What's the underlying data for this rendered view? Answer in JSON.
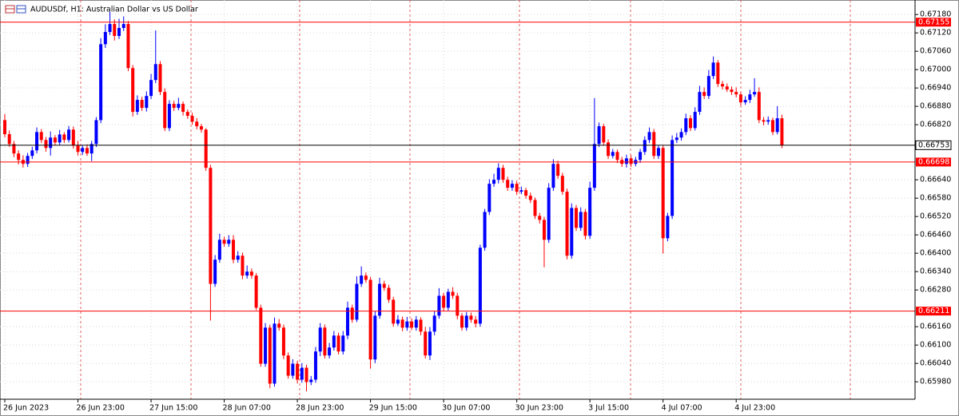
{
  "chart_data": {
    "type": "candlestick",
    "title": "AUDUSDf, H1:  Australian Dollar vs US Dollar",
    "categories": [
      "26 Jun 2023",
      null,
      null,
      null,
      null,
      null,
      null,
      null,
      null,
      null,
      null,
      null,
      null,
      null,
      null,
      null,
      "26 Jun 23:00",
      null,
      null,
      null,
      null,
      null,
      null,
      null,
      null,
      null,
      null,
      null,
      null,
      null,
      null,
      null,
      "27 Jun 15:00",
      null,
      null,
      null,
      null,
      null,
      null,
      null,
      null,
      null,
      null,
      null,
      null,
      null,
      null,
      null,
      "28 Jun 07:00",
      null,
      null,
      null,
      null,
      null,
      null,
      null,
      null,
      null,
      null,
      null,
      null,
      null,
      null,
      null,
      "28 Jun 23:00",
      null,
      null,
      null,
      null,
      null,
      null,
      null,
      null,
      null,
      null,
      null,
      null,
      null,
      null,
      null,
      "29 Jun 15:00",
      null,
      null,
      null,
      null,
      null,
      null,
      null,
      null,
      null,
      null,
      null,
      null,
      null,
      null,
      null,
      "30 Jun 07:00",
      null,
      null,
      null,
      null,
      null,
      null,
      null,
      null,
      null,
      null,
      null,
      null,
      null,
      null,
      null,
      "30 Jun 23:00",
      null,
      null,
      null,
      null,
      null,
      null,
      null,
      null,
      null,
      null,
      null,
      null,
      null,
      null,
      null,
      "3 Jul 15:00",
      null,
      null,
      null,
      null,
      null,
      null,
      null,
      null,
      null,
      null,
      null,
      null,
      null,
      null,
      null,
      "4 Jul 07:00",
      null,
      null,
      null,
      null,
      null,
      null,
      null,
      null,
      null,
      null,
      null,
      null,
      null,
      null,
      null,
      "4 Jul 23:00",
      null,
      null,
      null,
      null,
      null,
      null,
      null,
      null,
      null,
      null
    ],
    "open": [
      0.66835,
      0.66789,
      0.66757,
      0.66726,
      0.66705,
      0.66692,
      0.66718,
      0.66736,
      0.66796,
      0.6677,
      0.66744,
      0.66778,
      0.66762,
      0.66788,
      0.6677,
      0.66804,
      0.66752,
      0.66731,
      0.66744,
      0.66726,
      0.66757,
      0.66835,
      0.67083,
      0.67123,
      0.67149,
      0.6711,
      0.67136,
      0.67149,
      0.67005,
      0.66862,
      0.66901,
      0.66875,
      0.66914,
      0.66966,
      0.67018,
      0.66927,
      0.66809,
      0.66888,
      0.66875,
      0.66888,
      0.66862,
      0.66849,
      0.6683,
      0.66815,
      0.66804,
      0.66679,
      0.663,
      0.66379,
      0.66444,
      0.66431,
      0.66444,
      0.66379,
      0.66392,
      0.66327,
      0.6634,
      0.66327,
      0.66222,
      0.66039,
      0.66157,
      0.65974,
      0.6617,
      0.66157,
      0.66066,
      0.66,
      0.66039,
      0.65987,
      0.66026,
      0.65979,
      0.65987,
      0.66079,
      0.66157,
      0.66066,
      0.66092,
      0.66131,
      0.66079,
      0.66131,
      0.66222,
      0.66183,
      0.663,
      0.66327,
      0.66313,
      0.66053,
      0.66196,
      0.663,
      0.66287,
      0.66248,
      0.6617,
      0.66183,
      0.66157,
      0.66177,
      0.66157,
      0.66183,
      0.66144,
      0.66066,
      0.66144,
      0.66196,
      0.66261,
      0.66222,
      0.66274,
      0.66261,
      0.66196,
      0.66157,
      0.66196,
      0.66183,
      0.6617,
      0.66418,
      0.66535,
      0.66627,
      0.6664,
      0.66679,
      0.6664,
      0.66614,
      0.66627,
      0.66601,
      0.66606,
      0.66588,
      0.66574,
      0.66522,
      0.66509,
      0.66444,
      0.66614,
      0.66692,
      0.66653,
      0.66601,
      0.66392,
      0.66548,
      0.66483,
      0.66535,
      0.66457,
      0.66614,
      0.66757,
      0.66815,
      0.66762,
      0.66718,
      0.66731,
      0.66705,
      0.66692,
      0.6671,
      0.66692,
      0.66705,
      0.66731,
      0.6677,
      0.66796,
      0.66718,
      0.66744,
      0.66449,
      0.66522,
      0.6677,
      0.66778,
      0.66796,
      0.66841,
      0.66809,
      0.66862,
      0.66927,
      0.66914,
      0.66979,
      0.67023,
      0.66953,
      0.66945,
      0.66935,
      0.66927,
      0.66919,
      0.66893,
      0.66901,
      0.66919,
      0.66927,
      0.66835,
      0.6683,
      0.66835,
      0.66796,
      0.66841
    ],
    "high": [
      0.66855,
      0.66801,
      0.66767,
      0.66736,
      0.6672,
      0.66728,
      0.66748,
      0.66811,
      0.66806,
      0.6678,
      0.66798,
      0.66786,
      0.66803,
      0.66796,
      0.66816,
      0.66814,
      0.66767,
      0.66754,
      0.66756,
      0.66767,
      0.66845,
      0.67103,
      0.67148,
      0.67189,
      0.67164,
      0.67166,
      0.67174,
      0.67159,
      0.67015,
      0.66916,
      0.66911,
      0.66929,
      0.66986,
      0.67128,
      0.67028,
      0.66939,
      0.669,
      0.66898,
      0.66908,
      0.66896,
      0.6687,
      0.66859,
      0.66842,
      0.66823,
      0.66809,
      0.66689,
      0.66394,
      0.66464,
      0.66454,
      0.66459,
      0.66459,
      0.66407,
      0.66402,
      0.6636,
      0.6635,
      0.66335,
      0.66232,
      0.66172,
      0.66167,
      0.6619,
      0.66185,
      0.66167,
      0.66076,
      0.66054,
      0.66049,
      0.66041,
      0.66036,
      0.65999,
      0.66094,
      0.66172,
      0.66167,
      0.66107,
      0.66146,
      0.66141,
      0.66146,
      0.66242,
      0.66232,
      0.66325,
      0.66357,
      0.66337,
      0.66323,
      0.66211,
      0.6632,
      0.6631,
      0.66297,
      0.66258,
      0.66198,
      0.66193,
      0.66192,
      0.66187,
      0.66195,
      0.66191,
      0.66159,
      0.66159,
      0.66211,
      0.66286,
      0.66271,
      0.66284,
      0.66289,
      0.66271,
      0.66204,
      0.66208,
      0.66206,
      0.66195,
      0.66428,
      0.66545,
      0.66642,
      0.6666,
      0.66694,
      0.66689,
      0.6665,
      0.66639,
      0.66637,
      0.66618,
      0.66614,
      0.66598,
      0.66582,
      0.66532,
      0.66519,
      0.66629,
      0.66707,
      0.66702,
      0.66663,
      0.66611,
      0.66563,
      0.66558,
      0.6655,
      0.66545,
      0.66634,
      0.66907,
      0.66827,
      0.66823,
      0.66772,
      0.66741,
      0.66739,
      0.66715,
      0.66722,
      0.6672,
      0.66715,
      0.66741,
      0.66782,
      0.66811,
      0.66806,
      0.66754,
      0.66754,
      0.66532,
      0.66785,
      0.66793,
      0.66808,
      0.66856,
      0.66851,
      0.66877,
      0.66947,
      0.66942,
      0.66999,
      0.67043,
      0.67031,
      0.66963,
      0.66955,
      0.66945,
      0.66942,
      0.66927,
      0.66913,
      0.66934,
      0.66972,
      0.66942,
      0.66845,
      0.66847,
      0.66843,
      0.66881,
      0.66853
    ],
    "low": [
      0.66779,
      0.66747,
      0.66714,
      0.6669,
      0.6668,
      0.66682,
      0.66708,
      0.66726,
      0.6676,
      0.66732,
      0.66719,
      0.66752,
      0.66754,
      0.6676,
      0.66762,
      0.66742,
      0.66719,
      0.66721,
      0.66718,
      0.66701,
      0.66747,
      0.66825,
      0.67071,
      0.67113,
      0.67095,
      0.671,
      0.67126,
      0.66995,
      0.66847,
      0.66852,
      0.66865,
      0.66863,
      0.66904,
      0.66956,
      0.66917,
      0.66799,
      0.66799,
      0.66865,
      0.66867,
      0.6685,
      0.66839,
      0.6682,
      0.66805,
      0.66794,
      0.66669,
      0.6618,
      0.6629,
      0.66369,
      0.66421,
      0.66421,
      0.66367,
      0.66369,
      0.66315,
      0.66317,
      0.66317,
      0.66214,
      0.66029,
      0.66029,
      0.65959,
      0.65964,
      0.66147,
      0.66054,
      0.6599,
      0.6599,
      0.65975,
      0.65977,
      0.65949,
      0.65969,
      0.65977,
      0.66064,
      0.66056,
      0.66056,
      0.66082,
      0.66069,
      0.66069,
      0.66119,
      0.66173,
      0.66175,
      0.6629,
      0.66303,
      0.66023,
      0.66041,
      0.66186,
      0.66277,
      0.66238,
      0.6616,
      0.66162,
      0.66145,
      0.66147,
      0.66149,
      0.66147,
      0.66132,
      0.66056,
      0.66051,
      0.66132,
      0.66186,
      0.6621,
      0.66212,
      0.66251,
      0.66184,
      0.66147,
      0.66147,
      0.66173,
      0.66158,
      0.6616,
      0.66408,
      0.66525,
      0.66617,
      0.66628,
      0.6663,
      0.66604,
      0.66604,
      0.66591,
      0.66593,
      0.66578,
      0.66564,
      0.66512,
      0.66497,
      0.66354,
      0.66434,
      0.66604,
      0.66643,
      0.66591,
      0.6638,
      0.66382,
      0.66473,
      0.66473,
      0.66445,
      0.66447,
      0.66604,
      0.66747,
      0.66752,
      0.66708,
      0.6671,
      0.66695,
      0.66682,
      0.6668,
      0.66682,
      0.66684,
      0.66695,
      0.66721,
      0.6676,
      0.66708,
      0.66708,
      0.66399,
      0.66439,
      0.66512,
      0.6676,
      0.66768,
      0.66786,
      0.66799,
      0.66801,
      0.66852,
      0.66904,
      0.66904,
      0.66969,
      0.66943,
      0.66935,
      0.66927,
      0.66917,
      0.66909,
      0.66883,
      0.66885,
      0.66891,
      0.66911,
      0.66825,
      0.66818,
      0.6682,
      0.66786,
      0.66788,
      0.66743
    ],
    "close": [
      0.66789,
      0.66757,
      0.66726,
      0.66705,
      0.66692,
      0.66718,
      0.66736,
      0.66796,
      0.6677,
      0.66744,
      0.66778,
      0.66762,
      0.66788,
      0.6677,
      0.66804,
      0.66752,
      0.66731,
      0.66744,
      0.66726,
      0.66757,
      0.66835,
      0.67083,
      0.67123,
      0.67149,
      0.6711,
      0.67136,
      0.67149,
      0.67005,
      0.66862,
      0.66901,
      0.66875,
      0.66914,
      0.66966,
      0.67018,
      0.66927,
      0.66809,
      0.66888,
      0.66875,
      0.66888,
      0.66862,
      0.66849,
      0.6683,
      0.66815,
      0.66804,
      0.66679,
      0.663,
      0.66379,
      0.66444,
      0.66431,
      0.66444,
      0.66379,
      0.66392,
      0.66327,
      0.6634,
      0.66327,
      0.66222,
      0.66039,
      0.66157,
      0.65974,
      0.6617,
      0.66157,
      0.66066,
      0.66,
      0.66039,
      0.65987,
      0.66026,
      0.65979,
      0.65987,
      0.66079,
      0.66157,
      0.66066,
      0.66092,
      0.66131,
      0.66079,
      0.66131,
      0.66222,
      0.66183,
      0.663,
      0.66327,
      0.66313,
      0.66053,
      0.66196,
      0.663,
      0.66287,
      0.66248,
      0.6617,
      0.66183,
      0.66157,
      0.66177,
      0.66157,
      0.66183,
      0.66144,
      0.66066,
      0.66144,
      0.66196,
      0.66261,
      0.66222,
      0.66274,
      0.66261,
      0.66196,
      0.66157,
      0.66196,
      0.66183,
      0.6617,
      0.66418,
      0.66535,
      0.66627,
      0.6664,
      0.66679,
      0.6664,
      0.66614,
      0.66627,
      0.66601,
      0.66606,
      0.66588,
      0.66574,
      0.66522,
      0.66509,
      0.66444,
      0.66614,
      0.66692,
      0.66653,
      0.66601,
      0.66392,
      0.66548,
      0.66483,
      0.66535,
      0.66457,
      0.66614,
      0.66757,
      0.66815,
      0.66762,
      0.66718,
      0.66731,
      0.66705,
      0.66692,
      0.6671,
      0.66692,
      0.66705,
      0.66731,
      0.6677,
      0.66796,
      0.66718,
      0.66744,
      0.66449,
      0.66522,
      0.6677,
      0.66778,
      0.66796,
      0.66841,
      0.66809,
      0.66862,
      0.66927,
      0.66914,
      0.66979,
      0.67023,
      0.66953,
      0.66945,
      0.66935,
      0.66927,
      0.66919,
      0.66893,
      0.66901,
      0.66919,
      0.66927,
      0.66835,
      0.6683,
      0.66835,
      0.66796,
      0.66841,
      0.66753
    ],
    "up_color": "#0000ff",
    "down_color": "#ff0000",
    "ylim": [
      0.65923,
      0.67217
    ],
    "yticks": [
      {
        "value": 0.6598,
        "label": "0.65980"
      },
      {
        "value": 0.6604,
        "label": "0.66040"
      },
      {
        "value": 0.661,
        "label": "0.66100"
      },
      {
        "value": 0.6616,
        "label": "0.66160"
      },
      {
        "value": 0.6628,
        "label": "0.66280"
      },
      {
        "value": 0.6634,
        "label": "0.66340"
      },
      {
        "value": 0.664,
        "label": "0.66400"
      },
      {
        "value": 0.6646,
        "label": "0.66460"
      },
      {
        "value": 0.6652,
        "label": "0.66520"
      },
      {
        "value": 0.6658,
        "label": "0.66580"
      },
      {
        "value": 0.6664,
        "label": "0.66640"
      },
      {
        "value": 0.6682,
        "label": "0.66820"
      },
      {
        "value": 0.6688,
        "label": "0.66880"
      },
      {
        "value": 0.6694,
        "label": "0.66940"
      },
      {
        "value": 0.67,
        "label": "0.67000"
      },
      {
        "value": 0.6706,
        "label": "0.67060"
      },
      {
        "value": 0.6712,
        "label": "0.67120"
      },
      {
        "value": 0.6718,
        "label": "0.67180"
      }
    ],
    "grid": true,
    "levels": [
      0.67155,
      0.66698,
      0.66211
    ],
    "level_color": "#ff0000",
    "bid": 0.66753
  }
}
